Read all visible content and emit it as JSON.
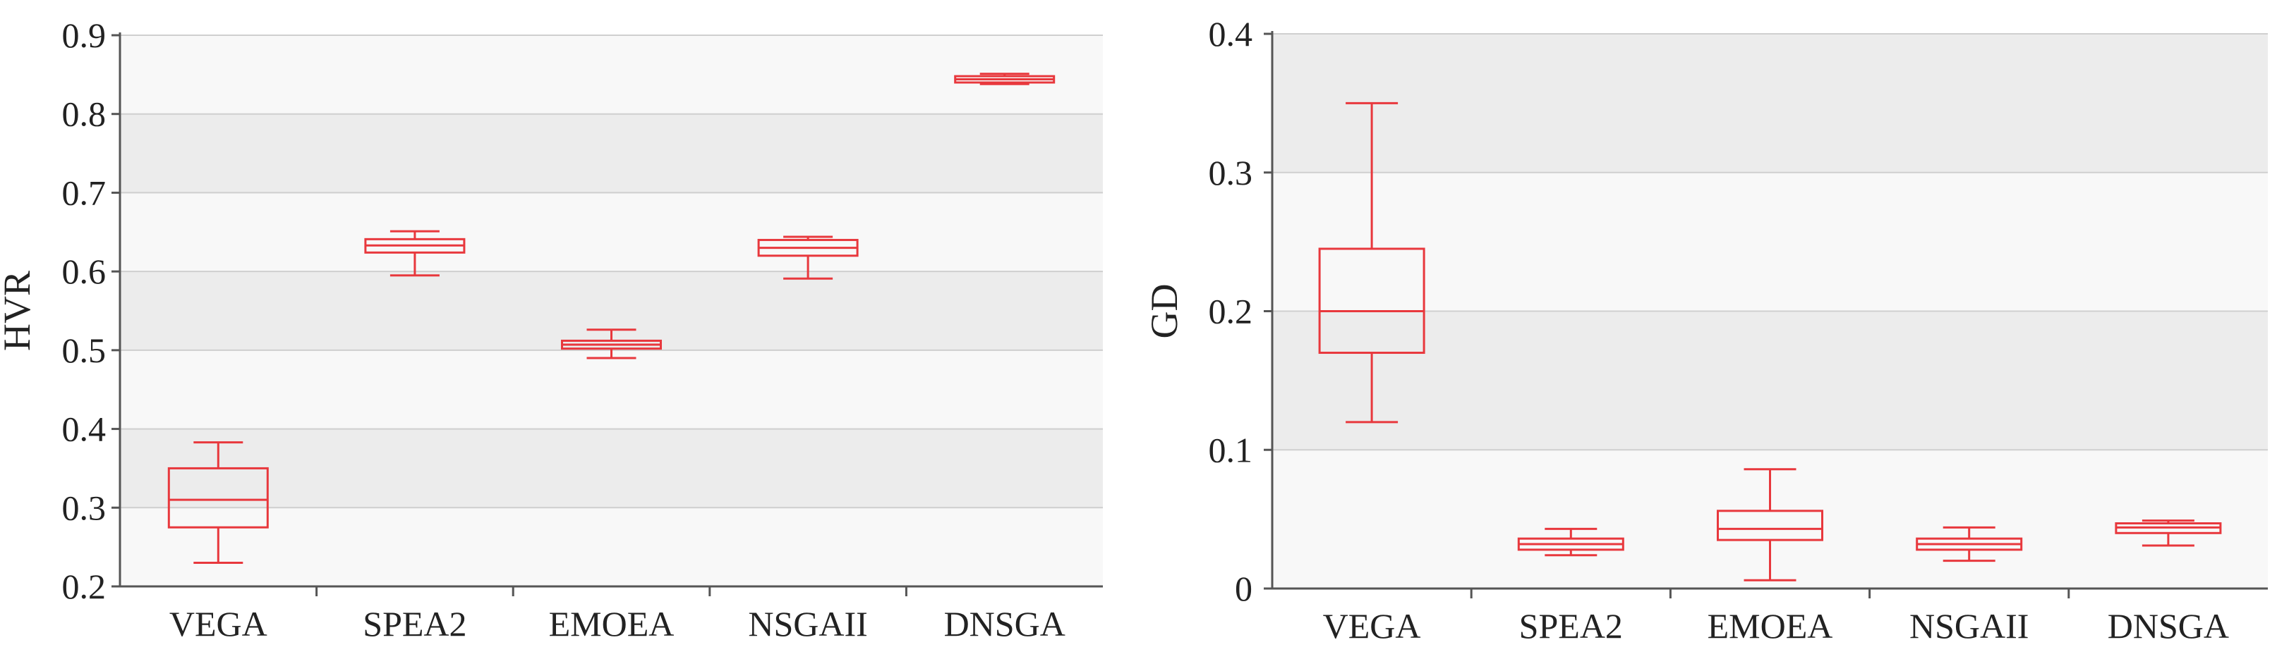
{
  "chart_data": [
    {
      "type": "box",
      "ylabel": "HVR",
      "xlabel": "",
      "ylim": [
        0.2,
        0.9
      ],
      "yticks": [
        "0.2",
        "0.3",
        "0.4",
        "0.5",
        "0.6",
        "0.7",
        "0.8",
        "0.9"
      ],
      "categories": [
        "VEGA",
        "SPEA2",
        "EMOEA",
        "NSGAII",
        "DNSGA"
      ],
      "boxes": [
        {
          "min": 0.23,
          "q1": 0.275,
          "median": 0.31,
          "q3": 0.35,
          "max": 0.383
        },
        {
          "min": 0.595,
          "q1": 0.624,
          "median": 0.633,
          "q3": 0.641,
          "max": 0.651
        },
        {
          "min": 0.49,
          "q1": 0.502,
          "median": 0.507,
          "q3": 0.512,
          "max": 0.526
        },
        {
          "min": 0.591,
          "q1": 0.62,
          "median": 0.63,
          "q3": 0.64,
          "max": 0.644
        },
        {
          "min": 0.838,
          "q1": 0.84,
          "median": 0.844,
          "q3": 0.848,
          "max": 0.851
        }
      ],
      "grid": true,
      "box_color": "#e8383d",
      "band_colors": [
        "#f8f8f8",
        "#ececec"
      ]
    },
    {
      "type": "box",
      "ylabel": "GD",
      "xlabel": "",
      "ylim": [
        0,
        0.4
      ],
      "yticks": [
        "0",
        "0.1",
        "0.2",
        "0.3",
        "0.4"
      ],
      "categories": [
        "VEGA",
        "SPEA2",
        "EMOEA",
        "NSGAII",
        "DNSGA"
      ],
      "boxes": [
        {
          "min": 0.12,
          "q1": 0.17,
          "median": 0.2,
          "q3": 0.245,
          "max": 0.35
        },
        {
          "min": 0.024,
          "q1": 0.028,
          "median": 0.032,
          "q3": 0.036,
          "max": 0.043
        },
        {
          "min": 0.006,
          "q1": 0.035,
          "median": 0.043,
          "q3": 0.056,
          "max": 0.086
        },
        {
          "min": 0.02,
          "q1": 0.028,
          "median": 0.032,
          "q3": 0.036,
          "max": 0.044
        },
        {
          "min": 0.031,
          "q1": 0.04,
          "median": 0.044,
          "q3": 0.047,
          "max": 0.049
        }
      ],
      "grid": true,
      "box_color": "#e8383d",
      "band_colors": [
        "#f8f8f8",
        "#ececec"
      ]
    }
  ]
}
